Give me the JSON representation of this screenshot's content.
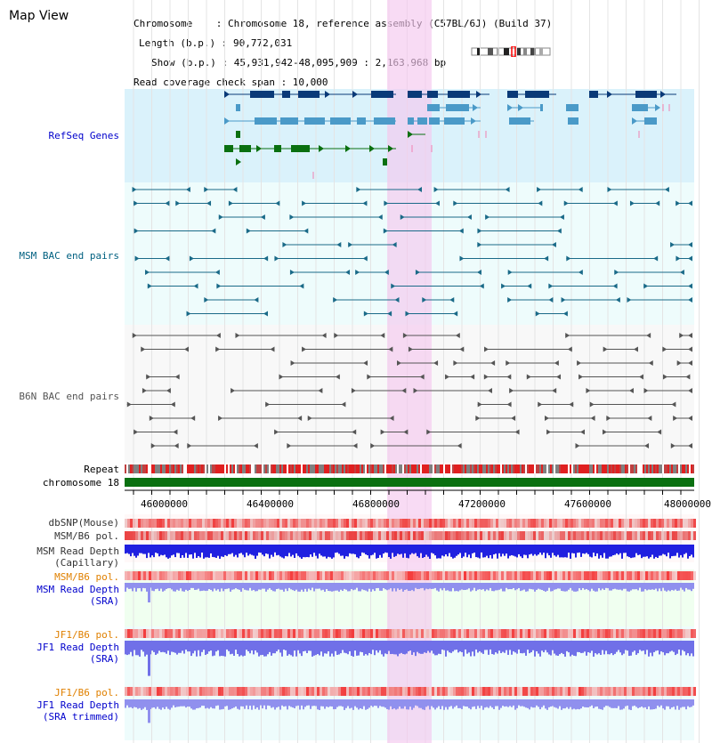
{
  "title": "Map View",
  "info": {
    "line1": "Chromosome    : Chromosome 18, reference assembly (C57BL/6J) (Build 37)",
    "line2": "Length (b.p.) : 90,772,031",
    "line3": "Show (b.p.) : 45,931,942-48,095,909 : 2,163,968 bp",
    "line4": "Read coverage check span : 10,000"
  },
  "tracks": {
    "refseq": "RefSeq Genes",
    "msm_bac": "MSM BAC end pairs",
    "b6n_bac": "B6N BAC end pairs",
    "repeat": "Repeat",
    "chromosome": "chromosome 18",
    "dbsnp": "dbSNP(Mouse)",
    "msm_b6_pol_1": "MSM/B6 pol.",
    "msm_read_depth_cap_1": "MSM Read Depth",
    "msm_read_depth_cap_2": "(Capillary)",
    "msm_b6_pol_2": "MSM/B6 pol.",
    "msm_read_depth_sra_1": "MSM Read Depth",
    "msm_read_depth_sra_2": "(SRA)",
    "jf1_b6_pol_1": "JF1/B6 pol.",
    "jf1_read_depth_sra_1": "JF1 Read Depth",
    "jf1_read_depth_sra_2": "(SRA)",
    "jf1_b6_pol_2": "JF1/B6 pol.",
    "jf1_read_depth_trim_1": "JF1 Read Depth",
    "jf1_read_depth_trim_2": "(SRA trimmed)"
  },
  "axis": {
    "ticks": [
      "46000000",
      "46400000",
      "46800000",
      "47200000",
      "47600000",
      "48000000"
    ]
  },
  "colors": {
    "gene_dark": "#0a3a78",
    "gene_light": "#4a9ac8",
    "gene_green": "#0a7010",
    "bac_msm": "#1a6a88",
    "bac_b6n": "#555555",
    "highlight": "#f5c8ee",
    "label_blue": "#0000cc",
    "label_teal": "#006080",
    "label_orange": "#e08000"
  }
}
